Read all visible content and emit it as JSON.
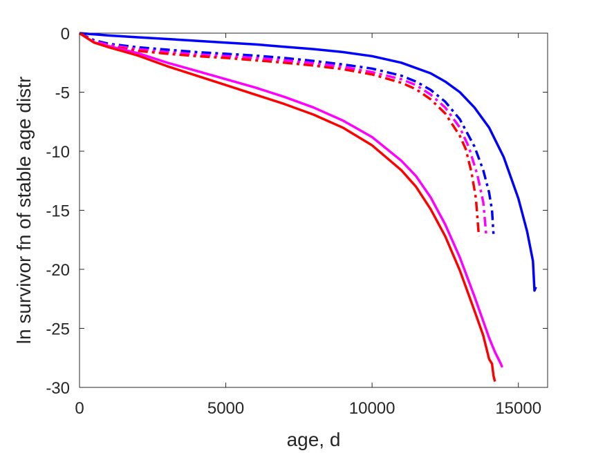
{
  "chart_data": {
    "type": "line",
    "title": "",
    "xlabel": "age, d",
    "ylabel": "ln survivor fn of stable age distr",
    "xlim": [
      0,
      16000
    ],
    "ylim": [
      -30,
      0
    ],
    "xticks": [
      0,
      5000,
      10000,
      15000
    ],
    "xtick_labels": [
      "0",
      "5000",
      "10000",
      "15000"
    ],
    "yticks": [
      0,
      -5,
      -10,
      -15,
      -20,
      -25,
      -30
    ],
    "ytick_labels": [
      "0",
      "-5",
      "-10",
      "-15",
      "-20",
      "-25",
      "-30"
    ],
    "grid": false,
    "legend": "none",
    "series": [
      {
        "color": "#0000ff",
        "style": "solid",
        "x": [
          0,
          1000,
          2000,
          3000,
          4000,
          5000,
          6000,
          7000,
          8000,
          9000,
          10000,
          11000,
          12000,
          12500,
          13000,
          13500,
          14000,
          14500,
          15000,
          15300,
          15500,
          15550,
          15600
        ],
        "y": [
          0,
          -0.2,
          -0.35,
          -0.5,
          -0.65,
          -0.8,
          -0.95,
          -1.15,
          -1.35,
          -1.6,
          -1.95,
          -2.5,
          -3.4,
          -4.1,
          -5.0,
          -6.3,
          -8.0,
          -10.5,
          -14.0,
          -16.8,
          -19.3,
          -21.8,
          -21.5
        ]
      },
      {
        "color": "#0000ff",
        "style": "dashdot",
        "x": [
          0,
          500,
          1000,
          2000,
          3000,
          4000,
          5000,
          6000,
          7000,
          8000,
          9000,
          10000,
          11000,
          11500,
          12000,
          12500,
          13000,
          13500,
          13800,
          14000,
          14100,
          14150
        ],
        "y": [
          0,
          -0.6,
          -0.9,
          -1.2,
          -1.4,
          -1.6,
          -1.75,
          -1.9,
          -2.1,
          -2.35,
          -2.65,
          -3.0,
          -3.6,
          -4.1,
          -4.8,
          -5.8,
          -7.3,
          -9.6,
          -11.6,
          -13.5,
          -15.0,
          -17.0
        ]
      },
      {
        "color": "#ff00ff",
        "style": "dashdot",
        "x": [
          0,
          500,
          1000,
          2000,
          3000,
          4000,
          5000,
          6000,
          7000,
          8000,
          9000,
          10000,
          11000,
          11500,
          12000,
          12500,
          13000,
          13300,
          13600,
          13800,
          13900
        ],
        "y": [
          0,
          -0.7,
          -1.0,
          -1.35,
          -1.6,
          -1.8,
          -1.95,
          -2.1,
          -2.3,
          -2.55,
          -2.85,
          -3.3,
          -3.9,
          -4.4,
          -5.2,
          -6.3,
          -8.0,
          -9.6,
          -12.0,
          -14.3,
          -17.0
        ]
      },
      {
        "color": "#ff0000",
        "style": "dashdot",
        "x": [
          0,
          500,
          1000,
          2000,
          3000,
          4000,
          5000,
          6000,
          7000,
          8000,
          9000,
          10000,
          11000,
          11500,
          12000,
          12500,
          13000,
          13200,
          13400,
          13550,
          13650
        ],
        "y": [
          0,
          -0.8,
          -1.1,
          -1.5,
          -1.75,
          -1.95,
          -2.1,
          -2.3,
          -2.5,
          -2.75,
          -3.05,
          -3.5,
          -4.2,
          -4.75,
          -5.6,
          -6.8,
          -8.7,
          -9.8,
          -11.8,
          -14.0,
          -17.2
        ]
      },
      {
        "color": "#ff00ff",
        "style": "solid",
        "x": [
          0,
          500,
          1000,
          2000,
          3000,
          4000,
          5000,
          6000,
          7000,
          8000,
          9000,
          10000,
          11000,
          11500,
          12000,
          12500,
          13000,
          13500,
          14000,
          14200,
          14400,
          14450
        ],
        "y": [
          0,
          -0.8,
          -1.1,
          -1.7,
          -2.5,
          -3.2,
          -3.9,
          -4.6,
          -5.4,
          -6.3,
          -7.4,
          -8.8,
          -10.8,
          -12.1,
          -13.9,
          -16.2,
          -19.0,
          -22.3,
          -25.8,
          -27.0,
          -28.0,
          -28.3
        ]
      },
      {
        "color": "#ff0000",
        "style": "solid",
        "x": [
          0,
          500,
          1000,
          2000,
          3000,
          4000,
          5000,
          6000,
          7000,
          8000,
          9000,
          10000,
          11000,
          11500,
          12000,
          12500,
          13000,
          13500,
          13800,
          14000,
          14100,
          14150,
          14200
        ],
        "y": [
          0,
          -0.8,
          -1.2,
          -1.9,
          -2.8,
          -3.6,
          -4.4,
          -5.2,
          -6.0,
          -6.9,
          -8.0,
          -9.5,
          -11.6,
          -13.0,
          -14.9,
          -17.2,
          -20.1,
          -23.5,
          -25.6,
          -27.6,
          -28.0,
          -29.0,
          -29.5
        ]
      }
    ]
  }
}
